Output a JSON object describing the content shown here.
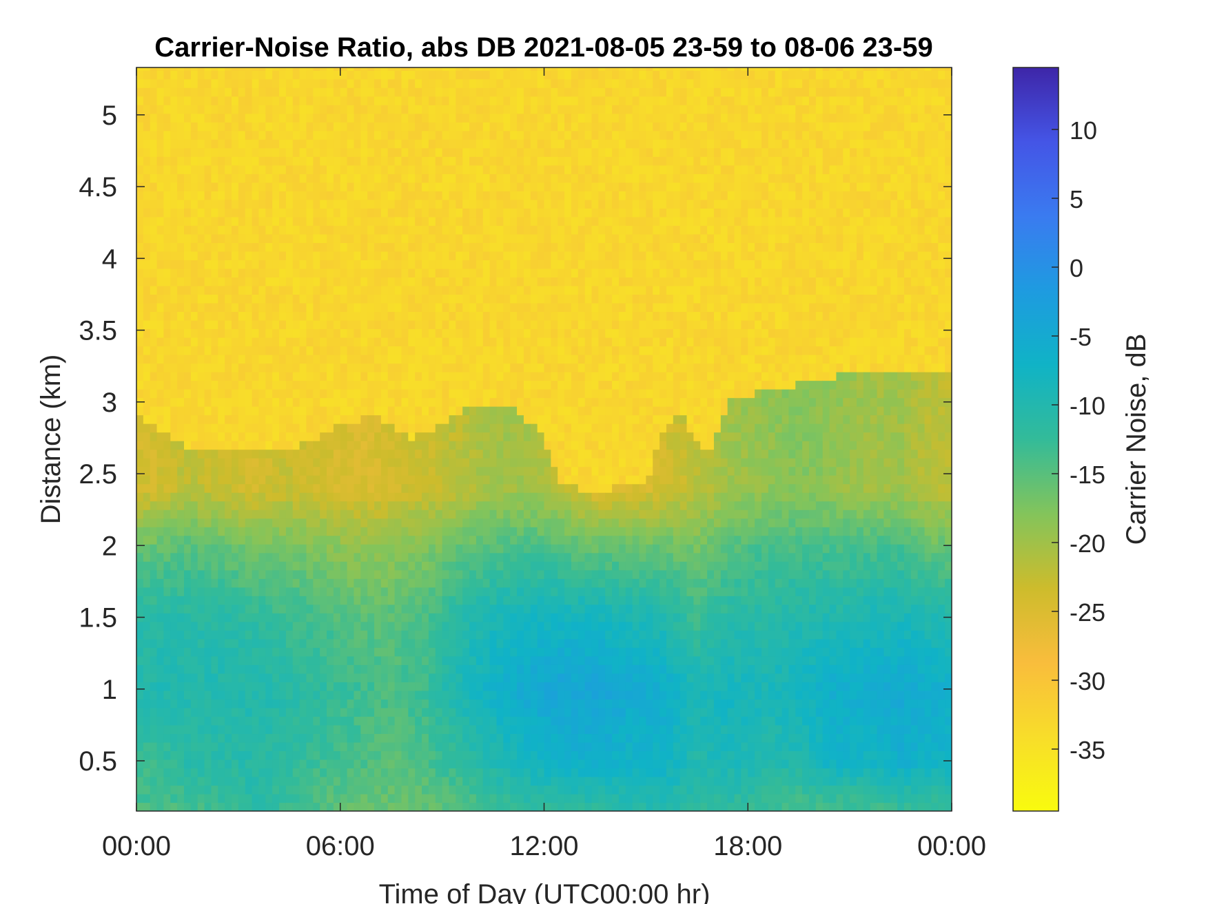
{
  "chart_data": {
    "type": "heatmap",
    "title": "Carrier-Noise Ratio, abs DB 2021-08-05 23-59 to 08-06 23-59",
    "xlabel": "Time of Day (UTC00:00 hr)",
    "ylabel": "Distance (km)",
    "colorbar_label": "Carrier Noise, dB",
    "x_unit": "hours since 00:00 UTC",
    "xlim": [
      0,
      24
    ],
    "ylim": [
      0.15,
      5.33
    ],
    "clim": [
      -39.5,
      14.5
    ],
    "x_ticks": [
      0,
      6,
      12,
      18,
      24
    ],
    "x_tick_labels": [
      "00:00",
      "06:00",
      "12:00",
      "18:00",
      "00:00"
    ],
    "y_ticks": [
      0.5,
      1,
      1.5,
      2,
      2.5,
      3,
      3.5,
      4,
      4.5,
      5
    ],
    "y_tick_labels": [
      "0.5",
      "1",
      "1.5",
      "2",
      "2.5",
      "3",
      "3.5",
      "4",
      "4.5",
      "5"
    ],
    "colorbar_ticks": [
      10,
      5,
      0,
      -5,
      -10,
      -15,
      -20,
      -25,
      -30,
      -35
    ],
    "colorbar_tick_labels": [
      "10",
      "5",
      "0",
      "-5",
      "-10",
      "-15",
      "-20",
      "-25",
      "-30",
      "-35"
    ],
    "colormap": "parula",
    "colormap_reversed": true,
    "grid": false,
    "boundary_layer_top_km": {
      "time_hr": [
        0,
        0.5,
        1.5,
        2.5,
        4.5,
        6,
        7,
        8,
        9,
        10,
        11,
        12,
        12.5,
        13,
        14,
        15,
        15.5,
        16,
        16.5,
        17,
        17.5,
        18,
        19,
        20,
        21,
        22,
        23,
        24
      ],
      "height_km": [
        2.9,
        2.85,
        2.7,
        2.65,
        2.65,
        2.85,
        2.9,
        2.75,
        2.85,
        3.0,
        3.0,
        2.75,
        2.45,
        2.4,
        2.4,
        2.45,
        2.8,
        2.95,
        2.7,
        2.7,
        3.05,
        3.05,
        3.1,
        3.15,
        3.2,
        3.2,
        3.2,
        3.2
      ]
    },
    "columns_hr": [
      0,
      1,
      2,
      3,
      4,
      5,
      6,
      7,
      8,
      9,
      10,
      11,
      12,
      13,
      14,
      15,
      16,
      17,
      18,
      19,
      20,
      21,
      22,
      23
    ],
    "rows_km": [
      0.15,
      0.5,
      1.0,
      1.5,
      2.0,
      2.4
    ],
    "values_db": [
      [
        -14,
        -13,
        -10,
        -11,
        -16,
        -24
      ],
      [
        -14,
        -11,
        -10,
        -11,
        -15,
        -22
      ],
      [
        -13,
        -11,
        -10,
        -11,
        -16,
        -23
      ],
      [
        -11,
        -11,
        -10,
        -12,
        -17,
        -24
      ],
      [
        -13,
        -12,
        -11,
        -13,
        -17,
        -23
      ],
      [
        -15,
        -13,
        -12,
        -14,
        -18,
        -24
      ],
      [
        -16,
        -14,
        -13,
        -15,
        -19,
        -25
      ],
      [
        -16,
        -15,
        -14,
        -15,
        -19,
        -24
      ],
      [
        -16,
        -14,
        -13,
        -14,
        -18,
        -23
      ],
      [
        -15,
        -12,
        -9,
        -11,
        -16,
        -22
      ],
      [
        -13,
        -10,
        -7,
        -9,
        -15,
        -20
      ],
      [
        -12,
        -8,
        -5,
        -8,
        -14,
        -20
      ],
      [
        -12,
        -7,
        -4,
        -8,
        -15,
        -22
      ],
      [
        -12,
        -6,
        -4,
        -8,
        -16,
        -25
      ],
      [
        -11,
        -7,
        -5,
        -9,
        -16,
        -25
      ],
      [
        -10,
        -7,
        -6,
        -10,
        -16,
        -24
      ],
      [
        -12,
        -10,
        -9,
        -13,
        -17,
        -22
      ],
      [
        -12,
        -9,
        -8,
        -11,
        -15,
        -20
      ],
      [
        -13,
        -10,
        -9,
        -11,
        -14,
        -19
      ],
      [
        -14,
        -10,
        -8,
        -10,
        -14,
        -18
      ],
      [
        -14,
        -7,
        -6,
        -10,
        -14,
        -19
      ],
      [
        -14,
        -8,
        -6,
        -9,
        -14,
        -20
      ],
      [
        -13,
        -6,
        -5,
        -9,
        -14,
        -20
      ],
      [
        -13,
        -7,
        -6,
        -10,
        -16,
        -22
      ]
    ],
    "above_boundary_db": -33
  }
}
